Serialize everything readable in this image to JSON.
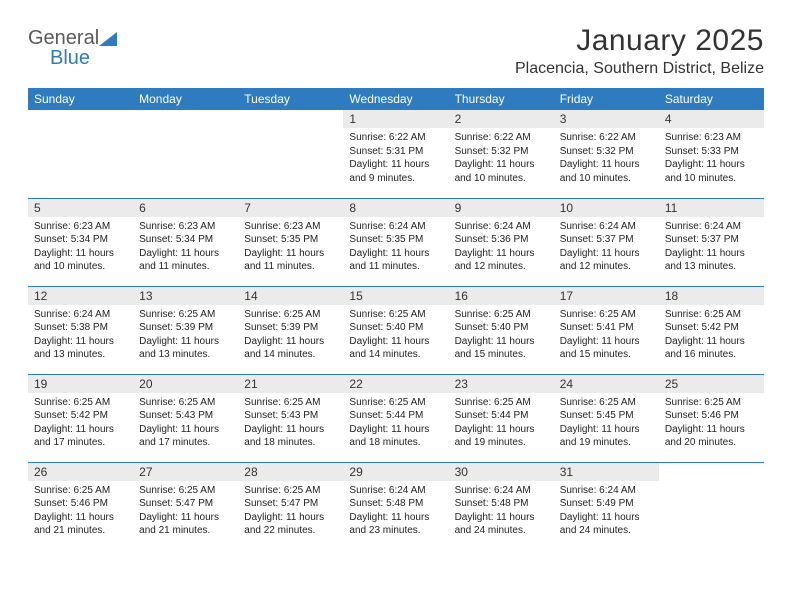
{
  "logo": {
    "word1": "General",
    "word2": "Blue"
  },
  "title": "January 2025",
  "location": "Placencia, Southern District, Belize",
  "colors": {
    "header_bg": "#2f7bbf",
    "header_text": "#ffffff",
    "daynum_bg": "#ebebeb",
    "rule": "#2f7bbf"
  },
  "typography": {
    "title_fontsize": 30,
    "location_fontsize": 16,
    "dayheader_fontsize": 12,
    "body_fontsize": 10
  },
  "daysOfWeek": [
    "Sunday",
    "Monday",
    "Tuesday",
    "Wednesday",
    "Thursday",
    "Friday",
    "Saturday"
  ],
  "weeks": [
    [
      {
        "n": "",
        "sr": "",
        "ss": "",
        "dl": ""
      },
      {
        "n": "",
        "sr": "",
        "ss": "",
        "dl": ""
      },
      {
        "n": "",
        "sr": "",
        "ss": "",
        "dl": ""
      },
      {
        "n": "1",
        "sr": "Sunrise: 6:22 AM",
        "ss": "Sunset: 5:31 PM",
        "dl": "Daylight: 11 hours and 9 minutes."
      },
      {
        "n": "2",
        "sr": "Sunrise: 6:22 AM",
        "ss": "Sunset: 5:32 PM",
        "dl": "Daylight: 11 hours and 10 minutes."
      },
      {
        "n": "3",
        "sr": "Sunrise: 6:22 AM",
        "ss": "Sunset: 5:32 PM",
        "dl": "Daylight: 11 hours and 10 minutes."
      },
      {
        "n": "4",
        "sr": "Sunrise: 6:23 AM",
        "ss": "Sunset: 5:33 PM",
        "dl": "Daylight: 11 hours and 10 minutes."
      }
    ],
    [
      {
        "n": "5",
        "sr": "Sunrise: 6:23 AM",
        "ss": "Sunset: 5:34 PM",
        "dl": "Daylight: 11 hours and 10 minutes."
      },
      {
        "n": "6",
        "sr": "Sunrise: 6:23 AM",
        "ss": "Sunset: 5:34 PM",
        "dl": "Daylight: 11 hours and 11 minutes."
      },
      {
        "n": "7",
        "sr": "Sunrise: 6:23 AM",
        "ss": "Sunset: 5:35 PM",
        "dl": "Daylight: 11 hours and 11 minutes."
      },
      {
        "n": "8",
        "sr": "Sunrise: 6:24 AM",
        "ss": "Sunset: 5:35 PM",
        "dl": "Daylight: 11 hours and 11 minutes."
      },
      {
        "n": "9",
        "sr": "Sunrise: 6:24 AM",
        "ss": "Sunset: 5:36 PM",
        "dl": "Daylight: 11 hours and 12 minutes."
      },
      {
        "n": "10",
        "sr": "Sunrise: 6:24 AM",
        "ss": "Sunset: 5:37 PM",
        "dl": "Daylight: 11 hours and 12 minutes."
      },
      {
        "n": "11",
        "sr": "Sunrise: 6:24 AM",
        "ss": "Sunset: 5:37 PM",
        "dl": "Daylight: 11 hours and 13 minutes."
      }
    ],
    [
      {
        "n": "12",
        "sr": "Sunrise: 6:24 AM",
        "ss": "Sunset: 5:38 PM",
        "dl": "Daylight: 11 hours and 13 minutes."
      },
      {
        "n": "13",
        "sr": "Sunrise: 6:25 AM",
        "ss": "Sunset: 5:39 PM",
        "dl": "Daylight: 11 hours and 13 minutes."
      },
      {
        "n": "14",
        "sr": "Sunrise: 6:25 AM",
        "ss": "Sunset: 5:39 PM",
        "dl": "Daylight: 11 hours and 14 minutes."
      },
      {
        "n": "15",
        "sr": "Sunrise: 6:25 AM",
        "ss": "Sunset: 5:40 PM",
        "dl": "Daylight: 11 hours and 14 minutes."
      },
      {
        "n": "16",
        "sr": "Sunrise: 6:25 AM",
        "ss": "Sunset: 5:40 PM",
        "dl": "Daylight: 11 hours and 15 minutes."
      },
      {
        "n": "17",
        "sr": "Sunrise: 6:25 AM",
        "ss": "Sunset: 5:41 PM",
        "dl": "Daylight: 11 hours and 15 minutes."
      },
      {
        "n": "18",
        "sr": "Sunrise: 6:25 AM",
        "ss": "Sunset: 5:42 PM",
        "dl": "Daylight: 11 hours and 16 minutes."
      }
    ],
    [
      {
        "n": "19",
        "sr": "Sunrise: 6:25 AM",
        "ss": "Sunset: 5:42 PM",
        "dl": "Daylight: 11 hours and 17 minutes."
      },
      {
        "n": "20",
        "sr": "Sunrise: 6:25 AM",
        "ss": "Sunset: 5:43 PM",
        "dl": "Daylight: 11 hours and 17 minutes."
      },
      {
        "n": "21",
        "sr": "Sunrise: 6:25 AM",
        "ss": "Sunset: 5:43 PM",
        "dl": "Daylight: 11 hours and 18 minutes."
      },
      {
        "n": "22",
        "sr": "Sunrise: 6:25 AM",
        "ss": "Sunset: 5:44 PM",
        "dl": "Daylight: 11 hours and 18 minutes."
      },
      {
        "n": "23",
        "sr": "Sunrise: 6:25 AM",
        "ss": "Sunset: 5:44 PM",
        "dl": "Daylight: 11 hours and 19 minutes."
      },
      {
        "n": "24",
        "sr": "Sunrise: 6:25 AM",
        "ss": "Sunset: 5:45 PM",
        "dl": "Daylight: 11 hours and 19 minutes."
      },
      {
        "n": "25",
        "sr": "Sunrise: 6:25 AM",
        "ss": "Sunset: 5:46 PM",
        "dl": "Daylight: 11 hours and 20 minutes."
      }
    ],
    [
      {
        "n": "26",
        "sr": "Sunrise: 6:25 AM",
        "ss": "Sunset: 5:46 PM",
        "dl": "Daylight: 11 hours and 21 minutes."
      },
      {
        "n": "27",
        "sr": "Sunrise: 6:25 AM",
        "ss": "Sunset: 5:47 PM",
        "dl": "Daylight: 11 hours and 21 minutes."
      },
      {
        "n": "28",
        "sr": "Sunrise: 6:25 AM",
        "ss": "Sunset: 5:47 PM",
        "dl": "Daylight: 11 hours and 22 minutes."
      },
      {
        "n": "29",
        "sr": "Sunrise: 6:24 AM",
        "ss": "Sunset: 5:48 PM",
        "dl": "Daylight: 11 hours and 23 minutes."
      },
      {
        "n": "30",
        "sr": "Sunrise: 6:24 AM",
        "ss": "Sunset: 5:48 PM",
        "dl": "Daylight: 11 hours and 24 minutes."
      },
      {
        "n": "31",
        "sr": "Sunrise: 6:24 AM",
        "ss": "Sunset: 5:49 PM",
        "dl": "Daylight: 11 hours and 24 minutes."
      },
      {
        "n": "",
        "sr": "",
        "ss": "",
        "dl": ""
      }
    ]
  ]
}
